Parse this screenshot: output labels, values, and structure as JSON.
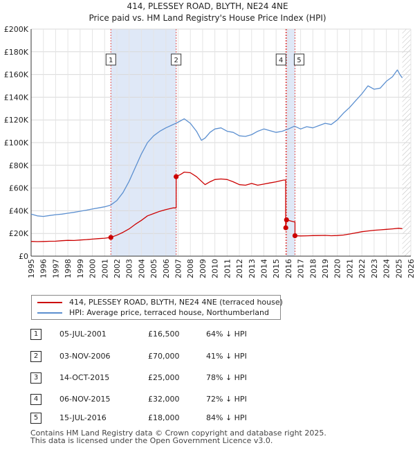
{
  "chart_data": {
    "type": "line",
    "title": "414, PLESSEY ROAD, BLYTH, NE24 4NE",
    "subtitle": "Price paid vs. HM Land Registry's House Price Index (HPI)",
    "xlabel": "",
    "ylabel": "",
    "xlim": [
      1995,
      2026
    ],
    "ylim": [
      0,
      200000
    ],
    "y_ticks": [
      {
        "value": 0,
        "label": "£0"
      },
      {
        "value": 20000,
        "label": "£20K"
      },
      {
        "value": 40000,
        "label": "£40K"
      },
      {
        "value": 60000,
        "label": "£60K"
      },
      {
        "value": 80000,
        "label": "£80K"
      },
      {
        "value": 100000,
        "label": "£100K"
      },
      {
        "value": 120000,
        "label": "£120K"
      },
      {
        "value": 140000,
        "label": "£140K"
      },
      {
        "value": 160000,
        "label": "£160K"
      },
      {
        "value": 180000,
        "label": "£180K"
      },
      {
        "value": 200000,
        "label": "£200K"
      }
    ],
    "x_ticks": [
      "1995",
      "1996",
      "1997",
      "1998",
      "1999",
      "2000",
      "2001",
      "2002",
      "2003",
      "2004",
      "2005",
      "2006",
      "2007",
      "2008",
      "2009",
      "2010",
      "2011",
      "2012",
      "2013",
      "2014",
      "2015",
      "2016",
      "2017",
      "2018",
      "2019",
      "2020",
      "2021",
      "2022",
      "2023",
      "2024",
      "2025",
      "2026"
    ],
    "series": [
      {
        "name": "414, PLESSEY ROAD, BLYTH, NE24 4NE (terraced house)",
        "color": "#cc0000",
        "points": [
          [
            1995.0,
            13000
          ],
          [
            1995.5,
            12800
          ],
          [
            1996.0,
            12900
          ],
          [
            1996.5,
            13100
          ],
          [
            1997.0,
            13200
          ],
          [
            1997.5,
            13600
          ],
          [
            1998.0,
            13900
          ],
          [
            1998.5,
            13800
          ],
          [
            1999.0,
            14200
          ],
          [
            1999.5,
            14600
          ],
          [
            2000.0,
            15000
          ],
          [
            2000.5,
            15400
          ],
          [
            2001.0,
            15800
          ],
          [
            2001.51,
            16500
          ],
          [
            2002.0,
            18500
          ],
          [
            2002.5,
            21000
          ],
          [
            2003.0,
            24000
          ],
          [
            2003.5,
            28000
          ],
          [
            2004.0,
            31500
          ],
          [
            2004.5,
            35500
          ],
          [
            2005.0,
            37500
          ],
          [
            2005.5,
            39500
          ],
          [
            2006.0,
            41000
          ],
          [
            2006.6,
            42500
          ],
          [
            2006.84,
            42500
          ],
          [
            2006.84,
            70000
          ],
          [
            2007.2,
            72000
          ],
          [
            2007.5,
            74000
          ],
          [
            2008.0,
            73500
          ],
          [
            2008.5,
            70000
          ],
          [
            2008.9,
            66000
          ],
          [
            2009.2,
            63000
          ],
          [
            2009.6,
            65500
          ],
          [
            2010.0,
            67500
          ],
          [
            2010.5,
            68000
          ],
          [
            2011.0,
            67500
          ],
          [
            2011.5,
            65500
          ],
          [
            2012.0,
            63000
          ],
          [
            2012.5,
            62500
          ],
          [
            2013.0,
            64000
          ],
          [
            2013.5,
            62500
          ],
          [
            2014.0,
            63500
          ],
          [
            2014.5,
            64500
          ],
          [
            2015.0,
            65500
          ],
          [
            2015.6,
            67000
          ],
          [
            2015.78,
            67000
          ],
          [
            2015.78,
            25000
          ],
          [
            2015.85,
            32000
          ],
          [
            2016.2,
            31000
          ],
          [
            2016.54,
            30000
          ],
          [
            2016.54,
            18000
          ],
          [
            2017.0,
            17800
          ],
          [
            2017.5,
            17900
          ],
          [
            2018.0,
            18100
          ],
          [
            2018.5,
            18200
          ],
          [
            2019.0,
            18300
          ],
          [
            2019.5,
            18000
          ],
          [
            2020.0,
            18200
          ],
          [
            2020.5,
            18600
          ],
          [
            2021.0,
            19500
          ],
          [
            2021.5,
            20500
          ],
          [
            2022.0,
            21500
          ],
          [
            2022.5,
            22200
          ],
          [
            2023.0,
            22800
          ],
          [
            2023.5,
            23200
          ],
          [
            2024.0,
            23600
          ],
          [
            2024.5,
            24000
          ],
          [
            2025.0,
            24600
          ],
          [
            2025.3,
            24200
          ]
        ]
      },
      {
        "name": "HPI: Average price, terraced house, Northumberland",
        "color": "#5b8fd0",
        "points": [
          [
            1995.0,
            37000
          ],
          [
            1995.5,
            35500
          ],
          [
            1996.0,
            35000
          ],
          [
            1996.5,
            35800
          ],
          [
            1997.0,
            36500
          ],
          [
            1997.5,
            37000
          ],
          [
            1998.0,
            37800
          ],
          [
            1998.5,
            38600
          ],
          [
            1999.0,
            39600
          ],
          [
            1999.5,
            40500
          ],
          [
            2000.0,
            41500
          ],
          [
            2000.5,
            42500
          ],
          [
            2001.0,
            43500
          ],
          [
            2001.5,
            45000
          ],
          [
            2002.0,
            49000
          ],
          [
            2002.5,
            56000
          ],
          [
            2003.0,
            66000
          ],
          [
            2003.5,
            78000
          ],
          [
            2004.0,
            90000
          ],
          [
            2004.5,
            100000
          ],
          [
            2005.0,
            106000
          ],
          [
            2005.5,
            110000
          ],
          [
            2006.0,
            113000
          ],
          [
            2006.5,
            115500
          ],
          [
            2007.0,
            118000
          ],
          [
            2007.5,
            121000
          ],
          [
            2008.0,
            117000
          ],
          [
            2008.5,
            110000
          ],
          [
            2008.9,
            102000
          ],
          [
            2009.2,
            104000
          ],
          [
            2009.6,
            109000
          ],
          [
            2010.0,
            112000
          ],
          [
            2010.5,
            113000
          ],
          [
            2011.0,
            110000
          ],
          [
            2011.5,
            109000
          ],
          [
            2012.0,
            106000
          ],
          [
            2012.5,
            105500
          ],
          [
            2013.0,
            107000
          ],
          [
            2013.5,
            110000
          ],
          [
            2014.0,
            112000
          ],
          [
            2014.5,
            110500
          ],
          [
            2015.0,
            109000
          ],
          [
            2015.5,
            110000
          ],
          [
            2016.0,
            112000
          ],
          [
            2016.5,
            114500
          ],
          [
            2017.0,
            112000
          ],
          [
            2017.5,
            114000
          ],
          [
            2018.0,
            113000
          ],
          [
            2018.5,
            115000
          ],
          [
            2019.0,
            117000
          ],
          [
            2019.5,
            116000
          ],
          [
            2020.0,
            120000
          ],
          [
            2020.5,
            126000
          ],
          [
            2021.0,
            131000
          ],
          [
            2021.5,
            137000
          ],
          [
            2022.0,
            143000
          ],
          [
            2022.5,
            150000
          ],
          [
            2023.0,
            147000
          ],
          [
            2023.5,
            148000
          ],
          [
            2024.0,
            154000
          ],
          [
            2024.5,
            158000
          ],
          [
            2024.9,
            164000
          ],
          [
            2025.1,
            160000
          ],
          [
            2025.3,
            157000
          ]
        ]
      }
    ],
    "sales": [
      {
        "n": "1",
        "x": 2001.51,
        "y": 16500
      },
      {
        "n": "2",
        "x": 2006.84,
        "y": 70000
      },
      {
        "n": "3",
        "x": 2015.79,
        "y": 25000
      },
      {
        "n": "4",
        "x": 2015.85,
        "y": 32000
      },
      {
        "n": "5",
        "x": 2016.54,
        "y": 18000
      }
    ],
    "marker_lines": [
      {
        "label": "1",
        "x": 2001.51
      },
      {
        "label": "2",
        "x": 2006.84
      },
      {
        "label": "3",
        "x": 2015.79
      },
      {
        "label": "4",
        "x": 2015.85
      },
      {
        "label": "5",
        "x": 2016.54
      }
    ],
    "chart_labels": [
      {
        "label": "1",
        "x": 2001.51
      },
      {
        "label": "2",
        "x": 2006.84
      },
      {
        "label": "4",
        "x": 2015.85
      },
      {
        "label": "5",
        "x": 2016.54
      }
    ],
    "shaded_spans": [
      [
        2001.51,
        2006.84
      ],
      [
        2015.85,
        2016.54
      ]
    ],
    "projection_start": 2025.3
  },
  "legend": {
    "entries": [
      {
        "label": "414, PLESSEY ROAD, BLYTH, NE24 4NE (terraced house)",
        "color": "#cc0000"
      },
      {
        "label": "HPI: Average price, terraced house, Northumberland",
        "color": "#5b8fd0"
      }
    ]
  },
  "transactions": [
    {
      "num": "1",
      "date": "05-JUL-2001",
      "price": "£16,500",
      "hpi": "64% ↓ HPI"
    },
    {
      "num": "2",
      "date": "03-NOV-2006",
      "price": "£70,000",
      "hpi": "41% ↓ HPI"
    },
    {
      "num": "3",
      "date": "14-OCT-2015",
      "price": "£25,000",
      "hpi": "78% ↓ HPI"
    },
    {
      "num": "4",
      "date": "06-NOV-2015",
      "price": "£32,000",
      "hpi": "72% ↓ HPI"
    },
    {
      "num": "5",
      "date": "15-JUL-2016",
      "price": "£18,000",
      "hpi": "84% ↓ HPI"
    }
  ],
  "footer": {
    "line1": "Contains HM Land Registry data © Crown copyright and database right 2025.",
    "line2": "This data is licensed under the Open Government Licence v3.0."
  }
}
